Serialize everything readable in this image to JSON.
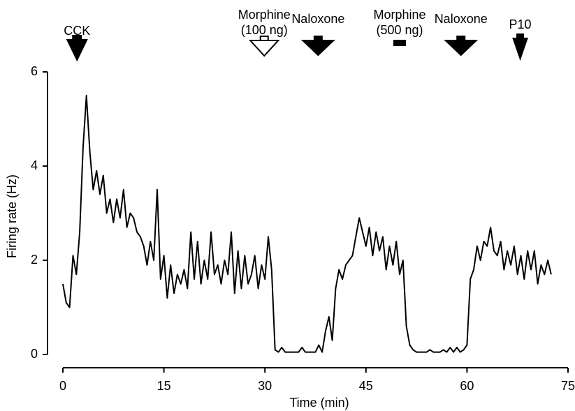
{
  "chart_data": {
    "type": "line",
    "xlabel": "Time (min)",
    "ylabel": "Firing rate (Hz)",
    "xlim": [
      0,
      75
    ],
    "xticks": [
      0,
      15,
      30,
      45,
      60,
      75
    ],
    "ylim": [
      0,
      6
    ],
    "yticks": [
      0,
      2,
      4,
      6
    ],
    "series": [
      {
        "color": "#000000",
        "x": [
          0,
          0.5,
          1,
          1.5,
          2,
          2.5,
          3,
          3.5,
          4,
          4.5,
          5,
          5.5,
          6,
          6.5,
          7,
          7.5,
          8,
          8.5,
          9,
          9.5,
          10,
          10.5,
          11,
          11.5,
          12,
          12.5,
          13,
          13.5,
          14,
          14.5,
          15,
          15.5,
          16,
          16.5,
          17,
          17.5,
          18,
          18.5,
          19,
          19.5,
          20,
          20.5,
          21,
          21.5,
          22,
          22.5,
          23,
          23.5,
          24,
          24.5,
          25,
          25.5,
          26,
          26.5,
          27,
          27.5,
          28,
          28.5,
          29,
          29.5,
          30,
          30.5,
          31,
          31.5,
          32,
          32.5,
          33,
          33.5,
          34,
          34.5,
          35,
          35.5,
          36,
          36.5,
          37,
          37.5,
          38,
          38.5,
          39,
          39.5,
          40,
          40.5,
          41,
          41.5,
          42,
          42.5,
          43,
          43.5,
          44,
          44.5,
          45,
          45.5,
          46,
          46.5,
          47,
          47.5,
          48,
          48.5,
          49,
          49.5,
          50,
          50.5,
          51,
          51.5,
          52,
          52.5,
          53,
          53.5,
          54,
          54.5,
          55,
          55.5,
          56,
          56.5,
          57,
          57.5,
          58,
          58.5,
          59,
          59.5,
          60,
          60.5,
          61,
          61.5,
          62,
          62.5,
          63,
          63.5,
          64,
          64.5,
          65,
          65.5,
          66,
          66.5,
          67,
          67.5,
          68,
          68.5,
          69,
          69.5,
          70,
          70.5,
          71,
          71.5,
          72,
          72.5
        ],
        "values": [
          1.5,
          1.1,
          1.0,
          2.1,
          1.7,
          2.6,
          4.4,
          5.5,
          4.3,
          3.5,
          3.9,
          3.4,
          3.8,
          3.0,
          3.3,
          2.8,
          3.3,
          2.9,
          3.5,
          2.7,
          3.0,
          2.9,
          2.6,
          2.5,
          2.3,
          1.9,
          2.4,
          2.0,
          3.5,
          1.6,
          2.1,
          1.2,
          1.9,
          1.3,
          1.7,
          1.5,
          1.8,
          1.4,
          2.6,
          1.6,
          2.4,
          1.5,
          2.0,
          1.6,
          2.6,
          1.7,
          1.9,
          1.5,
          2.0,
          1.7,
          2.6,
          1.3,
          2.2,
          1.4,
          2.1,
          1.5,
          1.7,
          2.1,
          1.4,
          1.9,
          1.6,
          2.5,
          1.8,
          0.1,
          0.05,
          0.15,
          0.05,
          0.05,
          0.05,
          0.05,
          0.05,
          0.15,
          0.05,
          0.05,
          0.05,
          0.05,
          0.2,
          0.05,
          0.5,
          0.8,
          0.3,
          1.4,
          1.8,
          1.6,
          1.9,
          2.0,
          2.1,
          2.5,
          2.9,
          2.6,
          2.3,
          2.7,
          2.1,
          2.6,
          2.2,
          2.5,
          1.8,
          2.3,
          1.9,
          2.4,
          1.7,
          2.0,
          0.6,
          0.2,
          0.1,
          0.05,
          0.05,
          0.05,
          0.05,
          0.1,
          0.05,
          0.05,
          0.05,
          0.1,
          0.05,
          0.15,
          0.05,
          0.15,
          0.05,
          0.1,
          0.2,
          1.6,
          1.8,
          2.3,
          2.0,
          2.4,
          2.3,
          2.7,
          2.2,
          2.1,
          2.4,
          1.8,
          2.2,
          1.9,
          2.3,
          1.7,
          2.1,
          1.6,
          2.2,
          1.8,
          2.2,
          1.5,
          1.9,
          1.7,
          2.0,
          1.7
        ]
      }
    ],
    "annotations": [
      {
        "lines": [
          "CCK"
        ],
        "x": 2.1,
        "marker": "arrow"
      },
      {
        "lines": [
          "Morphine",
          "(100 ng)"
        ],
        "x": 29.9,
        "marker": "open-arrow"
      },
      {
        "lines": [
          "Naloxone"
        ],
        "x": 37.9,
        "marker": "wide-arrow"
      },
      {
        "lines": [
          "Morphine",
          "(500 ng)"
        ],
        "x": 50,
        "marker": "bar"
      },
      {
        "lines": [
          "Naloxone"
        ],
        "x": 59.1,
        "marker": "wide-arrow"
      },
      {
        "lines": [
          "P10"
        ],
        "x": 67.9,
        "marker": "small-arrow"
      }
    ]
  }
}
